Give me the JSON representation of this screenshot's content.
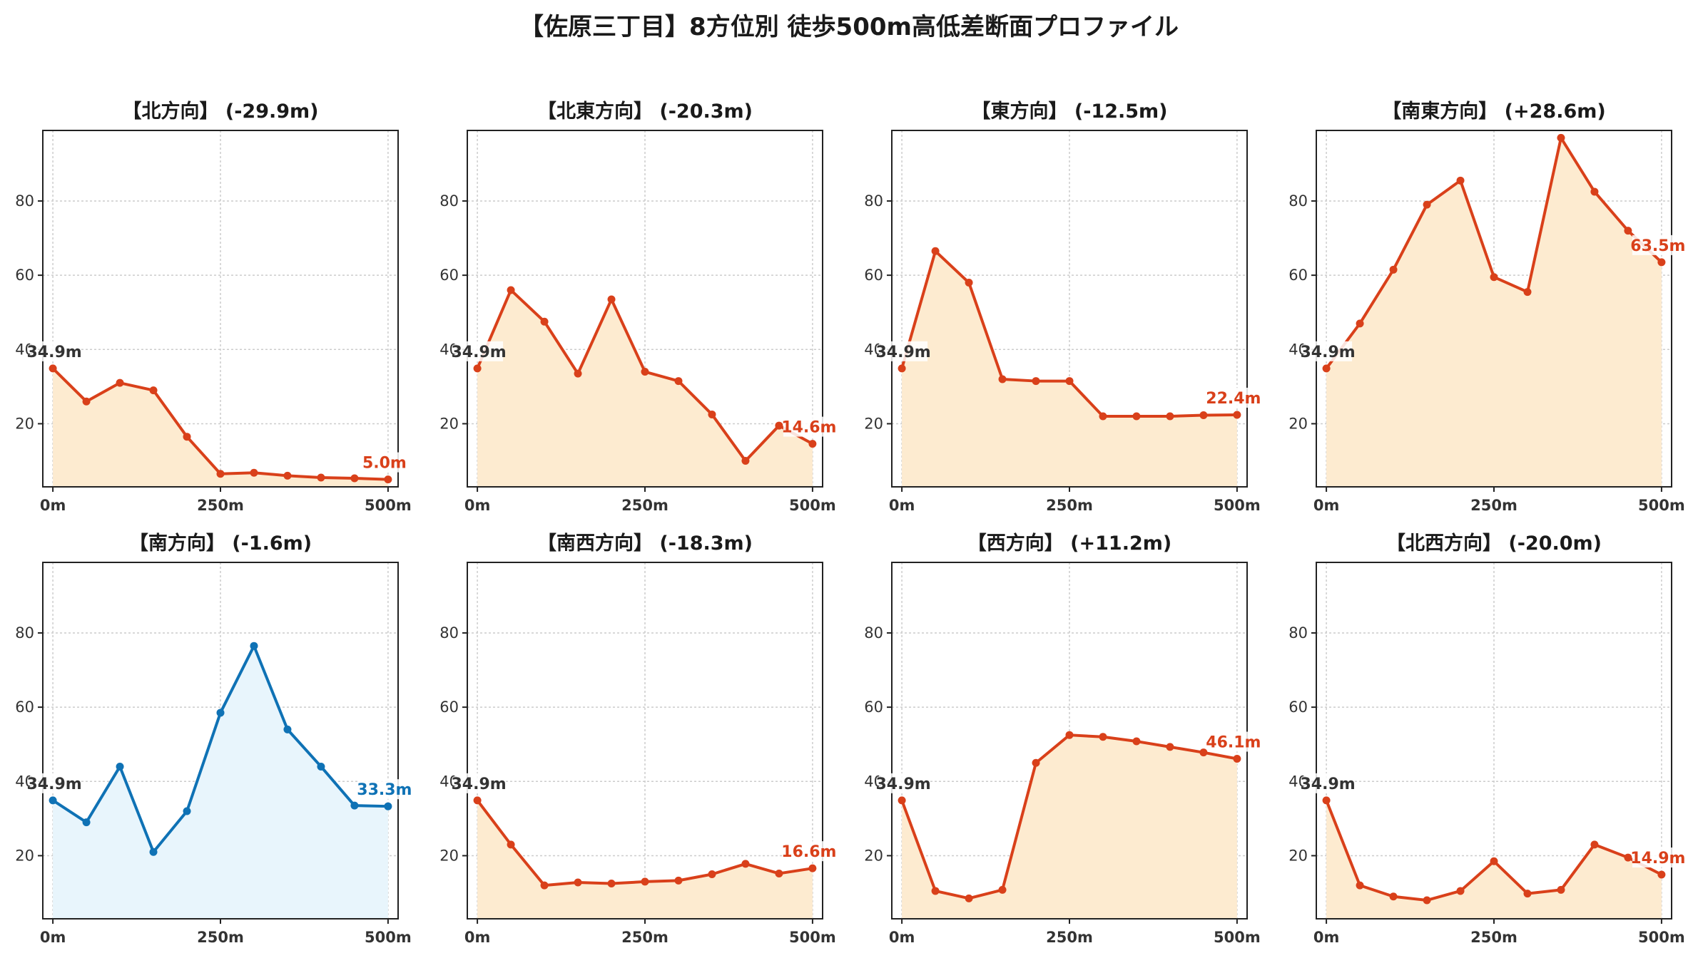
{
  "figure": {
    "title": "【佐原三丁目】8方位別 徒歩500m高低差断面プロファイル"
  },
  "colors": {
    "down": "#d9401a",
    "down_fill": "#fdebd0",
    "flat": "#0f72b5",
    "flat_fill": "#e8f5fc",
    "start_label": "#333333",
    "grid": "#cccccc"
  },
  "chart_data": [
    {
      "type": "area",
      "title": "【北方向】 (-29.9m)",
      "x": [
        0,
        50,
        100,
        150,
        200,
        250,
        300,
        350,
        400,
        450,
        500
      ],
      "values": [
        34.9,
        26.0,
        31.0,
        29.0,
        16.5,
        6.5,
        6.8,
        6.0,
        5.5,
        5.3,
        5.0
      ],
      "x_ticks": [
        "0m",
        "250m",
        "500m"
      ],
      "y_ticks": [
        20,
        40,
        60,
        80
      ],
      "xlim": [
        -15,
        515
      ],
      "ylim": [
        3,
        99
      ],
      "start_label": "34.9m",
      "end_label": "5.0m",
      "grid": true,
      "color_key": "down"
    },
    {
      "type": "area",
      "title": "【北東方向】 (-20.3m)",
      "x": [
        0,
        50,
        100,
        150,
        200,
        250,
        300,
        350,
        400,
        450,
        500
      ],
      "values": [
        34.9,
        56.0,
        47.5,
        33.5,
        53.5,
        34.0,
        31.5,
        22.5,
        10.0,
        19.5,
        14.6
      ],
      "x_ticks": [
        "0m",
        "250m",
        "500m"
      ],
      "y_ticks": [
        20,
        40,
        60,
        80
      ],
      "xlim": [
        -15,
        515
      ],
      "ylim": [
        3,
        99
      ],
      "start_label": "34.9m",
      "end_label": "14.6m",
      "grid": true,
      "color_key": "down"
    },
    {
      "type": "area",
      "title": "【東方向】 (-12.5m)",
      "x": [
        0,
        50,
        100,
        150,
        200,
        250,
        300,
        350,
        400,
        450,
        500
      ],
      "values": [
        34.9,
        66.5,
        58.0,
        32.0,
        31.5,
        31.5,
        22.0,
        22.0,
        22.0,
        22.3,
        22.4
      ],
      "x_ticks": [
        "0m",
        "250m",
        "500m"
      ],
      "y_ticks": [
        20,
        40,
        60,
        80
      ],
      "xlim": [
        -15,
        515
      ],
      "ylim": [
        3,
        99
      ],
      "start_label": "34.9m",
      "end_label": "22.4m",
      "grid": true,
      "color_key": "down"
    },
    {
      "type": "area",
      "title": "【南東方向】 (+28.6m)",
      "x": [
        0,
        50,
        100,
        150,
        200,
        250,
        300,
        350,
        400,
        450,
        500
      ],
      "values": [
        34.9,
        47.0,
        61.5,
        79.0,
        85.5,
        59.5,
        55.5,
        97.0,
        82.5,
        72.0,
        63.5
      ],
      "x_ticks": [
        "0m",
        "250m",
        "500m"
      ],
      "y_ticks": [
        20,
        40,
        60,
        80
      ],
      "xlim": [
        -15,
        515
      ],
      "ylim": [
        3,
        99
      ],
      "start_label": "34.9m",
      "end_label": "63.5m",
      "grid": true,
      "color_key": "down"
    },
    {
      "type": "area",
      "title": "【南方向】 (-1.6m)",
      "x": [
        0,
        50,
        100,
        150,
        200,
        250,
        300,
        350,
        400,
        450,
        500
      ],
      "values": [
        34.9,
        29.0,
        44.0,
        21.0,
        32.0,
        58.5,
        76.5,
        54.0,
        44.0,
        33.5,
        33.3
      ],
      "x_ticks": [
        "0m",
        "250m",
        "500m"
      ],
      "y_ticks": [
        20,
        40,
        60,
        80
      ],
      "xlim": [
        -15,
        515
      ],
      "ylim": [
        3,
        99
      ],
      "start_label": "34.9m",
      "end_label": "33.3m",
      "grid": true,
      "color_key": "flat"
    },
    {
      "type": "area",
      "title": "【南西方向】 (-18.3m)",
      "x": [
        0,
        50,
        100,
        150,
        200,
        250,
        300,
        350,
        400,
        450,
        500
      ],
      "values": [
        34.9,
        23.0,
        12.0,
        12.8,
        12.5,
        13.0,
        13.3,
        15.0,
        17.8,
        15.2,
        16.6
      ],
      "x_ticks": [
        "0m",
        "250m",
        "500m"
      ],
      "y_ticks": [
        20,
        40,
        60,
        80
      ],
      "xlim": [
        -15,
        515
      ],
      "ylim": [
        3,
        99
      ],
      "start_label": "34.9m",
      "end_label": "16.6m",
      "grid": true,
      "color_key": "down"
    },
    {
      "type": "area",
      "title": "【西方向】 (+11.2m)",
      "x": [
        0,
        50,
        100,
        150,
        200,
        250,
        300,
        350,
        400,
        450,
        500
      ],
      "values": [
        34.9,
        10.5,
        8.5,
        10.8,
        45.0,
        52.5,
        52.0,
        50.8,
        49.3,
        47.8,
        46.1
      ],
      "x_ticks": [
        "0m",
        "250m",
        "500m"
      ],
      "y_ticks": [
        20,
        40,
        60,
        80
      ],
      "xlim": [
        -15,
        515
      ],
      "ylim": [
        3,
        99
      ],
      "start_label": "34.9m",
      "end_label": "46.1m",
      "grid": true,
      "color_key": "down"
    },
    {
      "type": "area",
      "title": "【北西方向】 (-20.0m)",
      "x": [
        0,
        50,
        100,
        150,
        200,
        250,
        300,
        350,
        400,
        450,
        500
      ],
      "values": [
        34.9,
        12.0,
        9.0,
        8.0,
        10.5,
        18.5,
        9.8,
        10.8,
        23.0,
        19.5,
        14.9
      ],
      "x_ticks": [
        "0m",
        "250m",
        "500m"
      ],
      "y_ticks": [
        20,
        40,
        60,
        80
      ],
      "xlim": [
        -15,
        515
      ],
      "ylim": [
        3,
        99
      ],
      "start_label": "34.9m",
      "end_label": "14.9m",
      "grid": true,
      "color_key": "down"
    }
  ]
}
